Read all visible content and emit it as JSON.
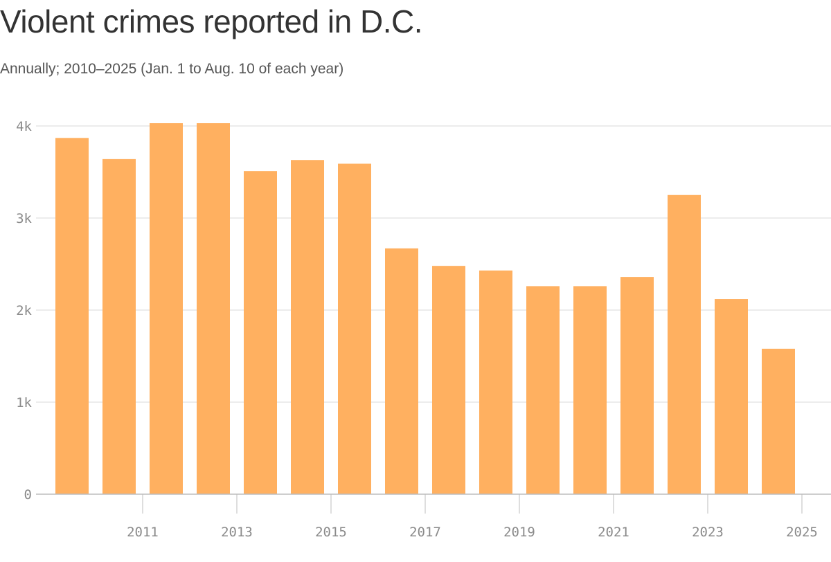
{
  "chart_data": {
    "type": "bar",
    "title": "Violent crimes reported in D.C.",
    "subtitle": "Annually; 2010–2025 (Jan. 1 to Aug. 10 of each year)",
    "categories": [
      "2010",
      "2011",
      "2012",
      "2013",
      "2014",
      "2015",
      "2016",
      "2017",
      "2018",
      "2019",
      "2020",
      "2021",
      "2022",
      "2023",
      "2024",
      "2025"
    ],
    "values": [
      3870,
      3640,
      4030,
      4030,
      3510,
      3630,
      3590,
      2670,
      2480,
      2430,
      2260,
      2260,
      2360,
      3250,
      2120,
      1580
    ],
    "x_tick_labels": [
      "2011",
      "2013",
      "2015",
      "2017",
      "2019",
      "2021",
      "2023",
      "2025"
    ],
    "y_ticks": [
      0,
      1000,
      2000,
      3000,
      4000
    ],
    "y_tick_labels": [
      "0",
      "1k",
      "2k",
      "3k",
      "4k"
    ],
    "ylim": [
      0,
      4000
    ],
    "bar_color": "#ffb060",
    "gridline_color": "#d9d9d9",
    "grid": true,
    "legend": "none"
  }
}
